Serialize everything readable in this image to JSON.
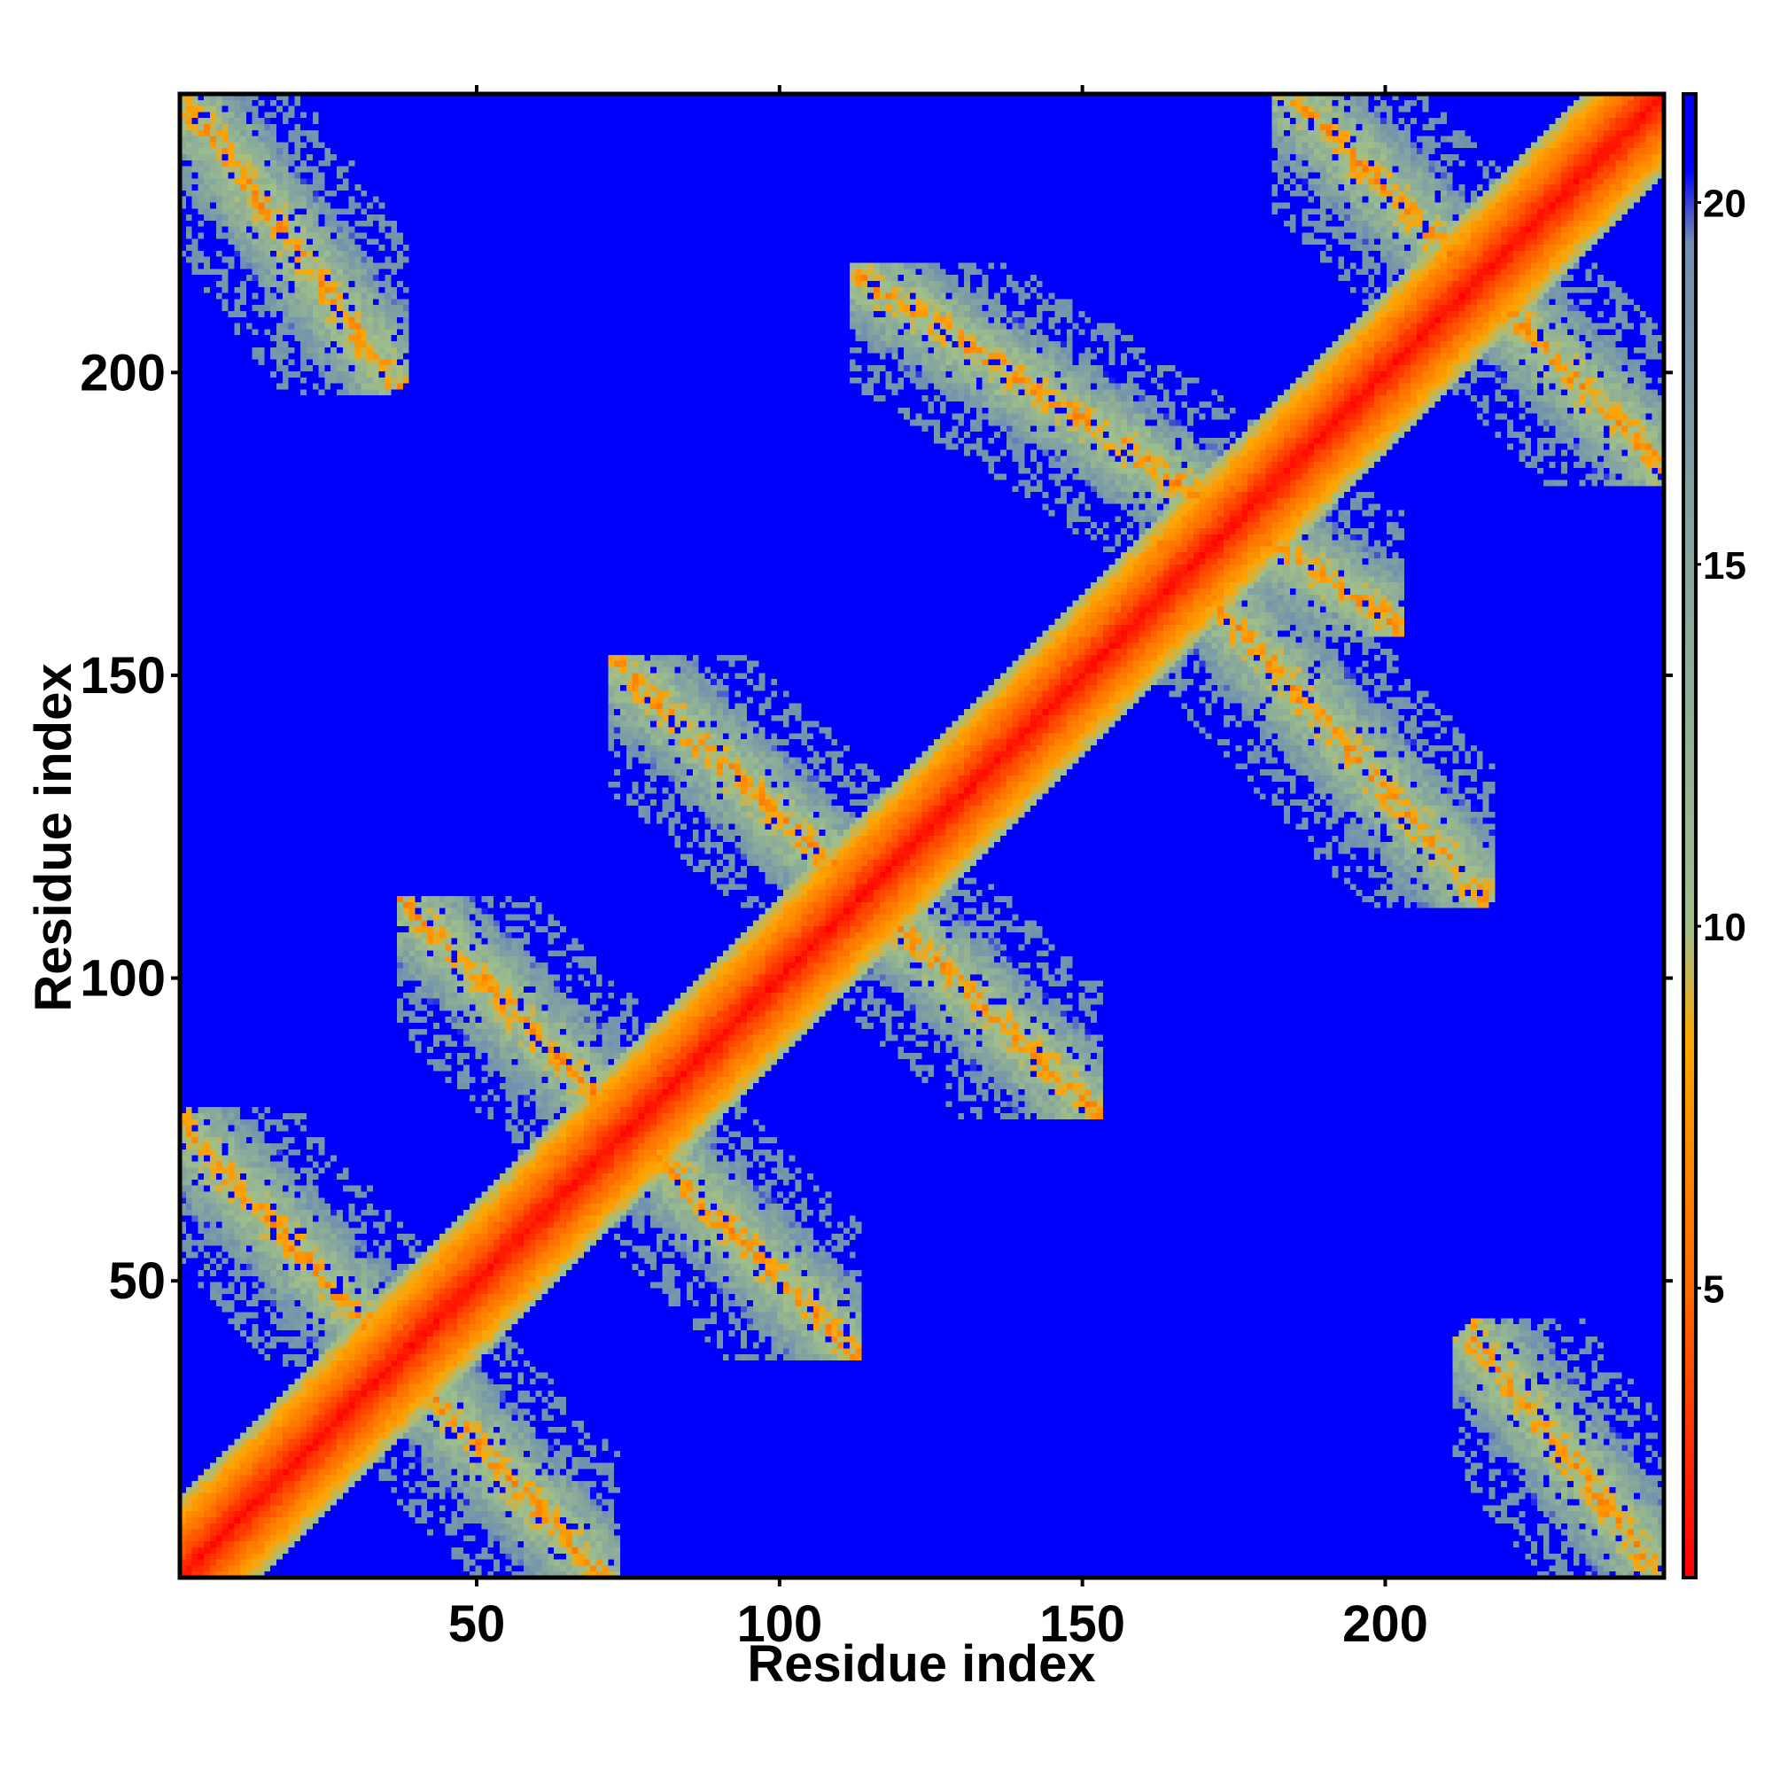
{
  "chart_data": {
    "type": "heatmap",
    "title": "",
    "xlabel": "Residue index",
    "ylabel": "Residue index",
    "n_residues": 246,
    "xlim": [
      1,
      246
    ],
    "ylim": [
      1,
      246
    ],
    "x_ticks": [
      50,
      100,
      150,
      200
    ],
    "y_ticks": [
      50,
      100,
      150,
      200
    ],
    "colorbar": {
      "ticks": [
        5,
        10,
        15,
        20
      ],
      "range": [
        1,
        21.5
      ],
      "colors": [
        "#ff0000",
        "#ff6a00",
        "#ffa500",
        "#9fbf8a",
        "#6f8fb0",
        "#0000ff"
      ],
      "stops": [
        0.0,
        0.2,
        0.36,
        0.44,
        0.9,
        0.95
      ]
    },
    "background_color": "#0000ff",
    "diagonal_color": "#ff0000",
    "grid": false,
    "contact_bands": [
      {
        "x_range": [
          1,
          70
        ],
        "y_range": [
          1,
          75
        ],
        "orientation": "anti-diagonal"
      },
      {
        "x_range": [
          40,
          110
        ],
        "y_range": [
          40,
          110
        ],
        "orientation": "anti-diagonal"
      },
      {
        "x_range": [
          75,
          150
        ],
        "y_range": [
          80,
          150
        ],
        "orientation": "anti-diagonal"
      },
      {
        "x_range": [
          115,
          200
        ],
        "y_range": [
          160,
          215
        ],
        "orientation": "anti-diagonal"
      },
      {
        "x_range": [
          165,
          215
        ],
        "y_range": [
          115,
          170
        ],
        "orientation": "anti-diagonal"
      },
      {
        "x_range": [
          185,
          246
        ],
        "y_range": [
          185,
          246
        ],
        "orientation": "anti-diagonal"
      },
      {
        "x_range": [
          1,
          35
        ],
        "y_range": [
          200,
          246
        ],
        "orientation": "anti-diagonal"
      },
      {
        "x_range": [
          215,
          246
        ],
        "y_range": [
          1,
          40
        ],
        "orientation": "anti-diagonal"
      }
    ]
  }
}
